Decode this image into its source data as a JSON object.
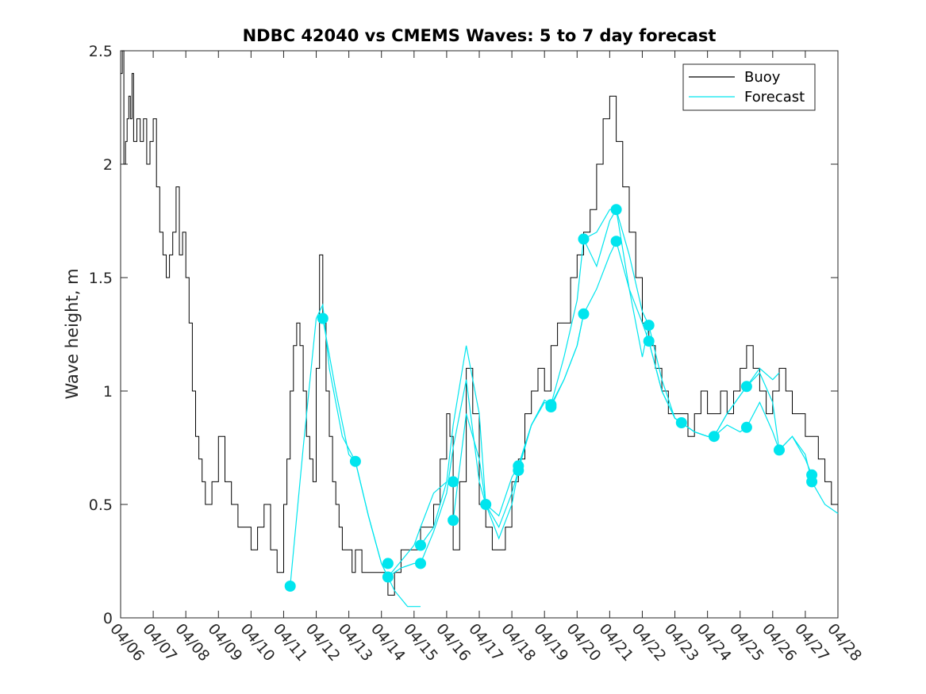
{
  "chart_data": {
    "type": "line",
    "title": "NDBC 42040 vs CMEMS Waves: 5 to 7 day forecast",
    "xlabel": "",
    "ylabel": "Wave height, m",
    "xlim": [
      6,
      28
    ],
    "ylim": [
      0,
      2.5
    ],
    "x_unit": "day of April",
    "x_ticks": [
      6,
      7,
      8,
      9,
      10,
      11,
      12,
      13,
      14,
      15,
      16,
      17,
      18,
      19,
      20,
      21,
      22,
      23,
      24,
      25,
      26,
      27,
      28
    ],
    "x_tick_labels": [
      "04/06",
      "04/07",
      "04/08",
      "04/09",
      "04/10",
      "04/11",
      "04/12",
      "04/13",
      "04/14",
      "04/15",
      "04/16",
      "04/17",
      "04/18",
      "04/19",
      "04/20",
      "04/21",
      "04/22",
      "04/23",
      "04/24",
      "04/25",
      "04/26",
      "04/27",
      "04/28"
    ],
    "y_ticks": [
      0,
      0.5,
      1,
      1.5,
      2,
      2.5
    ],
    "y_tick_labels": [
      "0",
      "0.5",
      "1",
      "1.5",
      "2",
      "2.5"
    ],
    "grid": false,
    "legend_position": "top-right",
    "legend": [
      {
        "label": "Buoy",
        "color": "#000000"
      },
      {
        "label": "Forecast",
        "color": "#00e5ee"
      }
    ],
    "buoy": {
      "name": "Buoy",
      "color": "#000000",
      "x": [
        6.0,
        6.05,
        6.1,
        6.15,
        6.2,
        6.25,
        6.3,
        6.35,
        6.4,
        6.5,
        6.6,
        6.7,
        6.8,
        6.9,
        7.0,
        7.1,
        7.2,
        7.3,
        7.4,
        7.5,
        7.6,
        7.7,
        7.8,
        7.9,
        8.0,
        8.1,
        8.2,
        8.3,
        8.4,
        8.5,
        8.6,
        8.8,
        9.0,
        9.2,
        9.4,
        9.6,
        9.8,
        10.0,
        10.2,
        10.4,
        10.6,
        10.8,
        11.0,
        11.1,
        11.2,
        11.3,
        11.4,
        11.5,
        11.6,
        11.7,
        11.8,
        11.9,
        12.0,
        12.1,
        12.2,
        12.3,
        12.4,
        12.5,
        12.6,
        12.7,
        12.8,
        12.9,
        13.0,
        13.1,
        13.2,
        13.4,
        13.6,
        13.8,
        14.0,
        14.2,
        14.4,
        14.6,
        14.8,
        15.0,
        15.2,
        15.4,
        15.6,
        15.8,
        16.0,
        16.1,
        16.2,
        16.4,
        16.6,
        16.8,
        17.0,
        17.2,
        17.4,
        17.6,
        17.8,
        18.0,
        18.2,
        18.4,
        18.6,
        18.8,
        19.0,
        19.2,
        19.4,
        19.6,
        19.8,
        20.0,
        20.2,
        20.4,
        20.6,
        20.8,
        21.0,
        21.2,
        21.4,
        21.6,
        21.8,
        22.0,
        22.2,
        22.4,
        22.6,
        22.8,
        23.0,
        23.2,
        23.4,
        23.6,
        23.8,
        24.0,
        24.2,
        24.4,
        24.6,
        24.8,
        25.0,
        25.2,
        25.4,
        25.6,
        25.8,
        26.0,
        26.2,
        26.4,
        26.6,
        26.8,
        27.0,
        27.2,
        27.4,
        27.6,
        27.8,
        28.0
      ],
      "y": [
        2.4,
        2.5,
        2.0,
        2.1,
        2.2,
        2.3,
        2.2,
        2.4,
        2.1,
        2.2,
        2.1,
        2.2,
        2.0,
        2.1,
        2.2,
        1.9,
        1.7,
        1.6,
        1.5,
        1.6,
        1.7,
        1.9,
        1.6,
        1.7,
        1.5,
        1.3,
        1.0,
        0.8,
        0.7,
        0.6,
        0.5,
        0.6,
        0.8,
        0.6,
        0.5,
        0.4,
        0.4,
        0.3,
        0.4,
        0.5,
        0.3,
        0.2,
        0.5,
        0.7,
        1.0,
        1.2,
        1.3,
        1.2,
        1.0,
        0.8,
        0.7,
        0.6,
        1.1,
        1.6,
        1.3,
        1.0,
        0.8,
        0.6,
        0.5,
        0.4,
        0.3,
        0.3,
        0.3,
        0.2,
        0.3,
        0.2,
        0.2,
        0.2,
        0.2,
        0.1,
        0.2,
        0.3,
        0.3,
        0.3,
        0.4,
        0.4,
        0.5,
        0.7,
        0.9,
        0.8,
        0.3,
        0.6,
        1.1,
        0.9,
        0.5,
        0.4,
        0.3,
        0.3,
        0.4,
        0.6,
        0.7,
        0.9,
        1.0,
        1.1,
        1.0,
        1.2,
        1.3,
        1.3,
        1.5,
        1.6,
        1.7,
        1.8,
        2.0,
        2.2,
        2.3,
        2.1,
        1.9,
        1.7,
        1.5,
        1.3,
        1.2,
        1.1,
        1.0,
        0.9,
        0.9,
        0.9,
        0.8,
        0.9,
        1.0,
        0.9,
        0.9,
        1.0,
        0.9,
        1.0,
        1.1,
        1.2,
        1.1,
        1.0,
        0.9,
        1.0,
        1.1,
        1.0,
        0.9,
        0.9,
        0.8,
        0.8,
        0.7,
        0.6,
        0.5,
        0.5
      ]
    },
    "forecast_series": [
      {
        "name": "Forecast",
        "color": "#00e5ee",
        "x": [
          11.2,
          11.6,
          12.0,
          12.2,
          12.4,
          12.8,
          13.2,
          13.6,
          14.0,
          14.4,
          14.8,
          15.2
        ],
        "y": [
          0.14,
          0.75,
          1.32,
          1.38,
          1.1,
          0.8,
          0.69,
          0.45,
          0.24,
          0.12,
          0.05,
          0.05
        ]
      },
      {
        "name": "Forecast",
        "color": "#00e5ee",
        "x": [
          12.2,
          12.6,
          13.0,
          13.2,
          13.6,
          14.0,
          14.2,
          14.6,
          15.0,
          15.2,
          15.6,
          16.0
        ],
        "y": [
          1.32,
          1.0,
          0.72,
          0.69,
          0.45,
          0.24,
          0.18,
          0.25,
          0.32,
          0.4,
          0.55,
          0.6
        ]
      },
      {
        "name": "Forecast",
        "color": "#00e5ee",
        "x": [
          14.2,
          14.6,
          15.0,
          15.2,
          15.6,
          16.0,
          16.2,
          16.6,
          17.0,
          17.2,
          17.6,
          18.0,
          18.2
        ],
        "y": [
          0.18,
          0.22,
          0.24,
          0.24,
          0.38,
          0.55,
          0.75,
          1.05,
          0.6,
          0.5,
          0.35,
          0.5,
          0.65
        ]
      },
      {
        "name": "Forecast",
        "color": "#00e5ee",
        "x": [
          15.2,
          15.6,
          16.0,
          16.2,
          16.6,
          17.0,
          17.2,
          17.6,
          18.0,
          18.2,
          18.6,
          19.0,
          19.2
        ],
        "y": [
          0.32,
          0.4,
          0.6,
          0.85,
          1.2,
          0.9,
          0.5,
          0.45,
          0.62,
          0.67,
          0.85,
          0.96,
          0.94
        ]
      },
      {
        "name": "Forecast",
        "color": "#00e5ee",
        "x": [
          16.2,
          16.6,
          17.0,
          17.2,
          17.6,
          18.0,
          18.2,
          18.6,
          19.0,
          19.2,
          19.6,
          20.0,
          20.2
        ],
        "y": [
          0.43,
          0.9,
          0.7,
          0.5,
          0.4,
          0.55,
          0.65,
          0.85,
          0.95,
          0.94,
          1.05,
          1.2,
          1.34
        ]
      },
      {
        "name": "Forecast",
        "color": "#00e5ee",
        "x": [
          18.2,
          18.6,
          19.0,
          19.2,
          19.6,
          20.0,
          20.2,
          20.6,
          21.0,
          21.2,
          21.6,
          22.0,
          22.2
        ],
        "y": [
          0.67,
          0.85,
          0.95,
          0.94,
          1.15,
          1.4,
          1.67,
          1.55,
          1.75,
          1.8,
          1.45,
          1.15,
          1.29
        ]
      },
      {
        "name": "Forecast",
        "color": "#00e5ee",
        "x": [
          19.2,
          19.6,
          20.0,
          20.2,
          20.6,
          21.0,
          21.2,
          21.6,
          22.0,
          22.2,
          22.6,
          23.0,
          23.2
        ],
        "y": [
          0.93,
          1.05,
          1.2,
          1.34,
          1.45,
          1.6,
          1.66,
          1.45,
          1.3,
          1.22,
          1.0,
          0.88,
          0.86
        ]
      },
      {
        "name": "Forecast",
        "color": "#00e5ee",
        "x": [
          20.2,
          20.6,
          21.0,
          21.2,
          21.6,
          22.0,
          22.2,
          22.6,
          23.0,
          23.2,
          23.6,
          24.0,
          24.2
        ],
        "y": [
          1.67,
          1.7,
          1.8,
          1.8,
          1.6,
          1.35,
          1.29,
          1.05,
          0.88,
          0.86,
          0.82,
          0.8,
          0.8
        ]
      },
      {
        "name": "Forecast",
        "color": "#00e5ee",
        "x": [
          22.2,
          22.6,
          23.0,
          23.2,
          23.6,
          24.0,
          24.2,
          24.6,
          25.0,
          25.2,
          25.6,
          26.0,
          26.2
        ],
        "y": [
          1.22,
          1.0,
          0.88,
          0.86,
          0.82,
          0.8,
          0.8,
          0.9,
          0.98,
          1.02,
          1.1,
          1.05,
          1.08
        ]
      },
      {
        "name": "Forecast",
        "color": "#00e5ee",
        "x": [
          23.2,
          23.6,
          24.0,
          24.2,
          24.6,
          25.0,
          25.2,
          25.6,
          26.0,
          26.2,
          26.6,
          27.0,
          27.2
        ],
        "y": [
          0.86,
          0.82,
          0.8,
          0.8,
          0.9,
          0.98,
          1.02,
          1.08,
          0.95,
          0.74,
          0.8,
          0.7,
          0.63
        ]
      },
      {
        "name": "Forecast",
        "color": "#00e5ee",
        "x": [
          24.2,
          24.6,
          25.0,
          25.2,
          25.6,
          26.0,
          26.2,
          26.6,
          27.0,
          27.2,
          27.6,
          28.0
        ],
        "y": [
          0.8,
          0.85,
          0.82,
          0.84,
          0.95,
          0.82,
          0.74,
          0.8,
          0.72,
          0.6,
          0.5,
          0.46
        ]
      }
    ],
    "forecast_markers": {
      "name": "Forecast",
      "color": "#00e5ee",
      "x": [
        11.2,
        12.2,
        13.2,
        14.2,
        14.2,
        15.2,
        15.2,
        16.2,
        16.2,
        17.2,
        18.2,
        18.2,
        19.2,
        19.2,
        20.2,
        20.2,
        21.2,
        21.2,
        22.2,
        22.2,
        23.2,
        24.2,
        25.2,
        25.2,
        26.2,
        27.2,
        27.2
      ],
      "y": [
        0.14,
        1.32,
        0.69,
        0.24,
        0.18,
        0.32,
        0.24,
        0.6,
        0.43,
        0.5,
        0.67,
        0.65,
        0.94,
        0.93,
        1.67,
        1.34,
        1.8,
        1.66,
        1.29,
        1.22,
        0.86,
        0.8,
        1.02,
        0.84,
        0.74,
        0.63,
        0.6
      ]
    }
  }
}
